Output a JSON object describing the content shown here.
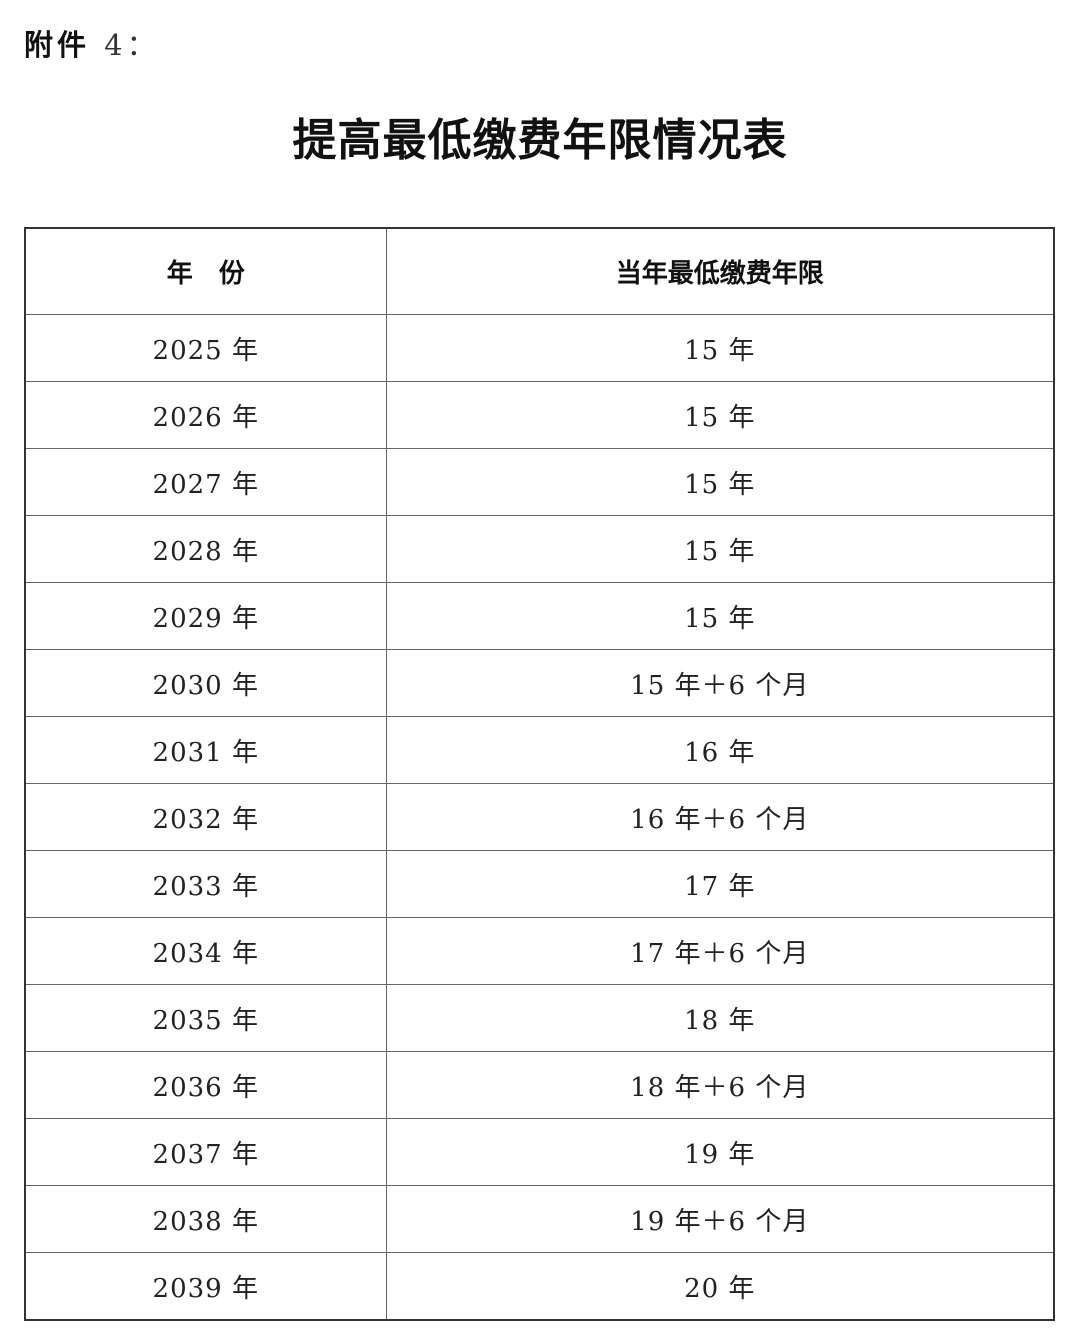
{
  "attachment": {
    "label": "附件",
    "number": "4："
  },
  "title": "提高最低缴费年限情况表",
  "table": {
    "headers": [
      "年　份",
      "当年最低缴费年限"
    ],
    "rows": [
      [
        "2025 年",
        "15 年"
      ],
      [
        "2026 年",
        "15 年"
      ],
      [
        "2027 年",
        "15 年"
      ],
      [
        "2028 年",
        "15 年"
      ],
      [
        "2029 年",
        "15 年"
      ],
      [
        "2030 年",
        "15 年＋6 个月"
      ],
      [
        "2031 年",
        "16 年"
      ],
      [
        "2032 年",
        "16 年＋6 个月"
      ],
      [
        "2033 年",
        "17 年"
      ],
      [
        "2034 年",
        "17 年＋6 个月"
      ],
      [
        "2035 年",
        "18 年"
      ],
      [
        "2036 年",
        "18 年＋6 个月"
      ],
      [
        "2037 年",
        "19 年"
      ],
      [
        "2038 年",
        "19 年＋6 个月"
      ],
      [
        "2039 年",
        "20 年"
      ]
    ]
  }
}
